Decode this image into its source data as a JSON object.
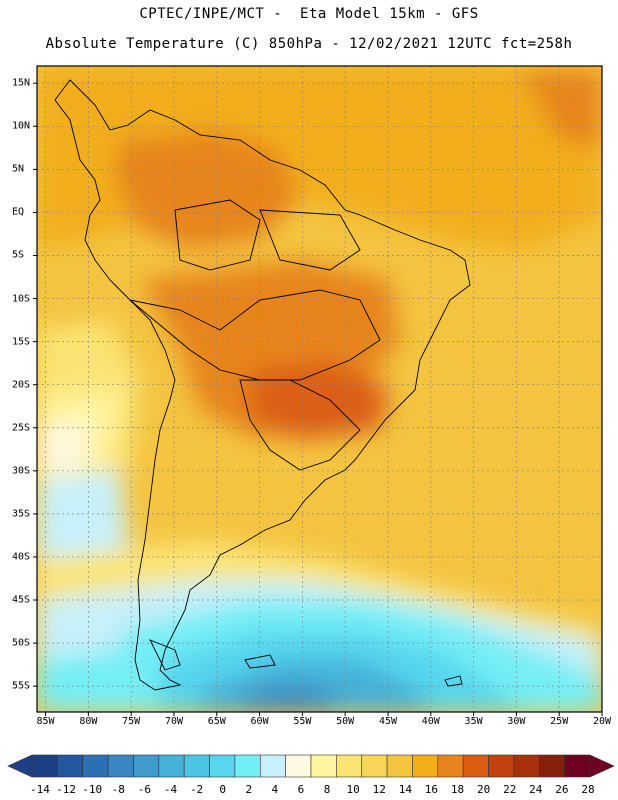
{
  "header": {
    "line1": "CPTEC/INPE/MCT -  Eta Model 15km - GFS",
    "line2": "Absolute Temperature (C) 850hPa - 12/02/2021 12UTC fct=258h"
  },
  "map": {
    "region": "South America",
    "lat_labels": [
      "15N",
      "10N",
      "5N",
      "EQ",
      "5S",
      "10S",
      "15S",
      "20S",
      "25S",
      "30S",
      "35S",
      "40S",
      "45S",
      "50S",
      "55S"
    ],
    "lon_labels": [
      "85W",
      "80W",
      "75W",
      "70W",
      "65W",
      "60W",
      "55W",
      "50W",
      "45W",
      "40W",
      "35W",
      "30W",
      "25W",
      "20W"
    ]
  },
  "colorbar": {
    "labels": [
      "-14",
      "-12",
      "-10",
      "-8",
      "-6",
      "-4",
      "-2",
      "0",
      "2",
      "4",
      "6",
      "8",
      "10",
      "12",
      "14",
      "16",
      "18",
      "20",
      "22",
      "24",
      "26",
      "28"
    ],
    "colors": [
      "#1d3f86",
      "#2357a0",
      "#2d6fb4",
      "#3a86c2",
      "#3f9ccc",
      "#45b0d8",
      "#4cc4e4",
      "#57d6ee",
      "#74eef6",
      "#c8f0fa",
      "#fff8e2",
      "#fff4a0",
      "#fbe474",
      "#f7d45a",
      "#f4c441",
      "#f2ae1b",
      "#e7851c",
      "#db5e12",
      "#c2420d",
      "#a8300b",
      "#86200d",
      "#700020"
    ]
  }
}
